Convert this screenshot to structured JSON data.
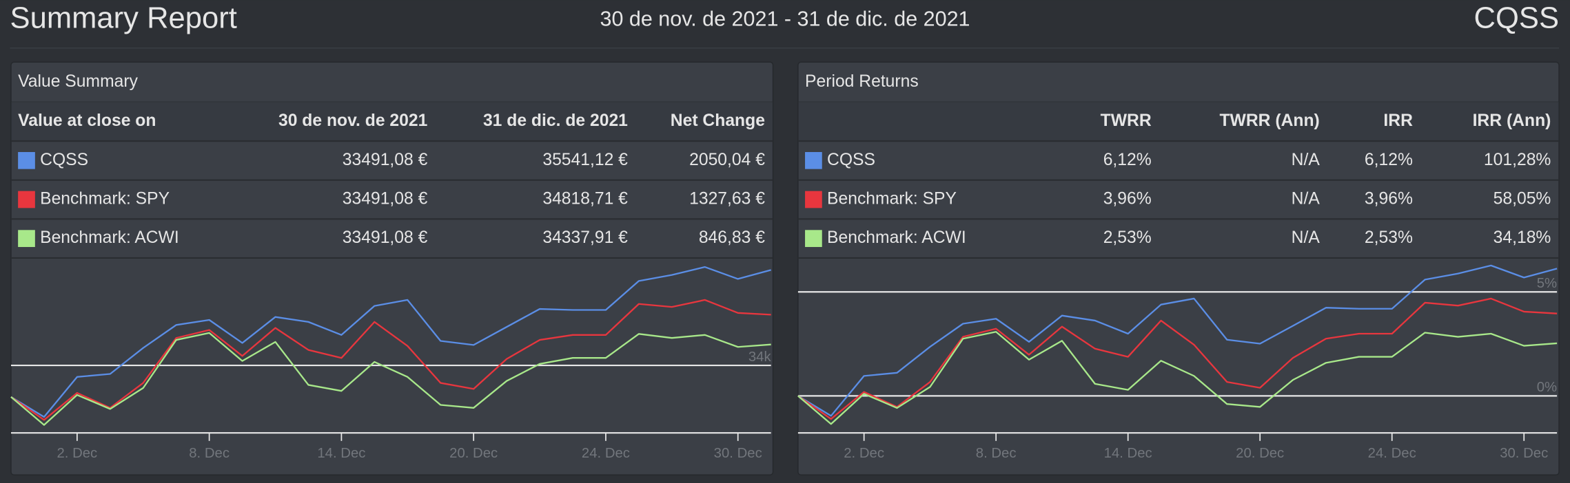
{
  "header": {
    "title": "Summary Report",
    "period": "30 de nov. de 2021 - 31 de dic. de 2021",
    "account": "CQSS"
  },
  "value_summary": {
    "title": "Value Summary",
    "columns": [
      "Value at close on",
      "30 de nov. de 2021",
      "31 de dic. de 2021",
      "Net Change"
    ],
    "rows": [
      [
        "33491,08 €",
        "35541,12 €",
        "2050,04 €"
      ],
      [
        "33491,08 €",
        "34818,71 €",
        "1327,63 €"
      ],
      [
        "33491,08 €",
        "34337,91 €",
        "846,83 €"
      ]
    ]
  },
  "period_returns": {
    "title": "Period Returns",
    "columns": [
      "TWRR",
      "TWRR (Ann)",
      "IRR",
      "IRR (Ann)"
    ],
    "rows": [
      [
        "6,12%",
        "N/A",
        "6,12%",
        "101,28%"
      ],
      [
        "3,96%",
        "N/A",
        "3,96%",
        "58,05%"
      ],
      [
        "2,53%",
        "N/A",
        "2,53%",
        "34,18%"
      ]
    ]
  },
  "chart_data": [
    {
      "type": "line",
      "categories": [
        null,
        null,
        "2. Dec",
        null,
        null,
        null,
        "8. Dec",
        null,
        null,
        null,
        "14. Dec",
        null,
        null,
        null,
        "20. Dec",
        null,
        null,
        null,
        "24. Dec",
        null,
        null,
        null,
        "30. Dec",
        null
      ],
      "series": [
        {
          "name": "CQSS",
          "color": "#5b8ee6",
          "values": [
            33491.08,
            33168,
            33814,
            33862,
            34282,
            34653,
            34734,
            34363,
            34782,
            34702,
            34492,
            34960,
            35057,
            34395,
            34330,
            34621,
            34911,
            34895,
            34895,
            35363,
            35460,
            35589,
            35396,
            35541.12
          ]
        },
        {
          "name": "Benchmark: SPY",
          "color": "#e8363e",
          "values": [
            33491.08,
            33120,
            33556,
            33314,
            33717,
            34443,
            34572,
            34153,
            34605,
            34250,
            34120,
            34702,
            34314,
            33717,
            33620,
            34104,
            34411,
            34492,
            34492,
            34992,
            34944,
            35057,
            34847,
            34818.71
          ]
        },
        {
          "name": "Benchmark: ACWI",
          "color": "#a8e88a",
          "values": [
            33491.08,
            33039,
            33523,
            33297,
            33636,
            34411,
            34524,
            34072,
            34379,
            33685,
            33588,
            34056,
            33814,
            33362,
            33314,
            33749,
            34024,
            34121,
            34121,
            34508,
            34443,
            34492,
            34298,
            34337.91
          ]
        }
      ],
      "ylim": [
        32910,
        35734
      ],
      "yticks": [
        {
          "value": 34000,
          "label": "34k"
        }
      ],
      "grid": true
    },
    {
      "type": "line",
      "categories": [
        null,
        null,
        "2. Dec",
        null,
        null,
        null,
        "8. Dec",
        null,
        null,
        null,
        "14. Dec",
        null,
        null,
        null,
        "20. Dec",
        null,
        null,
        null,
        "24. Dec",
        null,
        null,
        null,
        "30. Dec",
        null
      ],
      "series": [
        {
          "name": "CQSS",
          "color": "#5b8ee6",
          "values": [
            0,
            -0.96,
            0.96,
            1.11,
            2.36,
            3.47,
            3.71,
            2.6,
            3.86,
            3.62,
            2.99,
            4.39,
            4.68,
            2.7,
            2.51,
            3.37,
            4.24,
            4.19,
            4.19,
            5.59,
            5.88,
            6.27,
            5.69,
            6.12
          ]
        },
        {
          "name": "Benchmark: SPY",
          "color": "#e8363e",
          "values": [
            0,
            -1.11,
            0.19,
            -0.53,
            0.67,
            2.84,
            3.23,
            1.98,
            3.33,
            2.27,
            1.88,
            3.62,
            2.46,
            0.67,
            0.39,
            1.83,
            2.75,
            2.99,
            2.99,
            4.48,
            4.34,
            4.68,
            4.05,
            3.96
          ]
        },
        {
          "name": "Benchmark: ACWI",
          "color": "#a8e88a",
          "values": [
            0,
            -1.35,
            0.1,
            -0.58,
            0.43,
            2.75,
            3.08,
            1.74,
            2.65,
            0.58,
            0.29,
            1.69,
            0.96,
            -0.39,
            -0.53,
            0.77,
            1.59,
            1.88,
            1.88,
            3.04,
            2.84,
            2.99,
            2.41,
            2.53
          ]
        }
      ],
      "ylim": [
        -1.78,
        6.63
      ],
      "yticks": [
        {
          "value": 0,
          "label": "0%"
        },
        {
          "value": 5,
          "label": "5%"
        }
      ],
      "grid": true
    }
  ]
}
